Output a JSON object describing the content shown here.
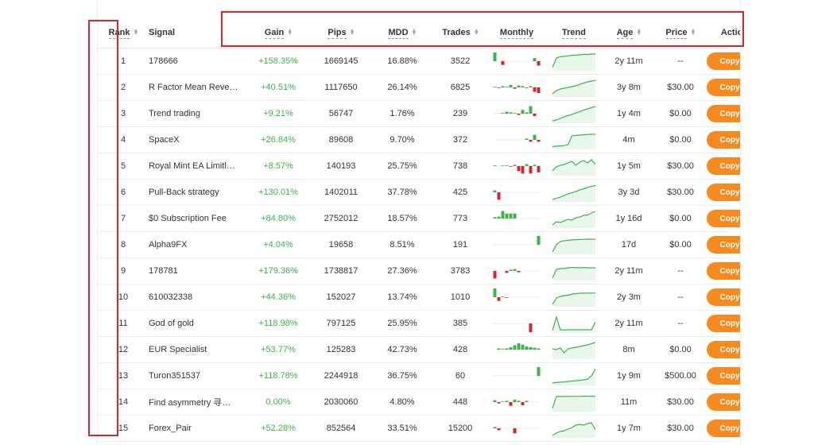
{
  "headers": {
    "rank": "Rank",
    "signal": "Signal",
    "gain": "Gain",
    "pips": "Pips",
    "mdd": "MDD",
    "trades": "Trades",
    "monthly": "Monthly",
    "trend": "Trend",
    "age": "Age",
    "price": "Price",
    "action": "Action"
  },
  "colors": {
    "positive": "#3cb44b",
    "negative": "#d9262a",
    "accent_button": "#f68a1f",
    "highlight_box": "#d9262a"
  },
  "rows": [
    {
      "rank": "1",
      "signal": "178666",
      "gain": "+158.35%",
      "pips": "1669145",
      "mdd": "16.88%",
      "trades": "3522",
      "age": "2y 11m",
      "price": "--",
      "action": "Copy",
      "monthly": [
        14,
        0,
        -6,
        0,
        0,
        0,
        0,
        0,
        0,
        0,
        5,
        -7
      ],
      "trend": [
        0.1,
        0.7,
        0.78,
        0.8,
        0.84,
        0.87,
        0.88,
        0.9,
        0.93,
        0.92,
        0.95,
        0.95
      ]
    },
    {
      "rank": "2",
      "signal": "R Factor Mean Reve…",
      "gain": "+40.51%",
      "pips": "1117650",
      "mdd": "26.14%",
      "trades": "6825",
      "age": "3y 8m",
      "price": "$30.00",
      "action": "Copy",
      "monthly": [
        1,
        -1,
        2,
        1,
        4,
        -2,
        3,
        2,
        -1,
        2,
        -7,
        -9
      ],
      "trend": [
        0.1,
        0.3,
        0.4,
        0.45,
        0.5,
        0.55,
        0.6,
        0.7,
        0.78,
        0.85,
        0.9,
        0.95
      ]
    },
    {
      "rank": "3",
      "signal": "Trend trading",
      "gain": "+9.21%",
      "pips": "56747",
      "mdd": "1.76%",
      "trades": "239",
      "age": "1y 4m",
      "price": "$0.00",
      "action": "Copy",
      "monthly": [
        0,
        0,
        1,
        3,
        2,
        1,
        -2,
        6,
        2,
        12,
        -4,
        0
      ],
      "trend": [
        0.05,
        0.1,
        0.2,
        0.3,
        0.38,
        0.45,
        0.55,
        0.62,
        0.72,
        0.8,
        0.88,
        0.95
      ]
    },
    {
      "rank": "4",
      "signal": "SpaceX",
      "gain": "+26.84%",
      "pips": "89608",
      "mdd": "9.70%",
      "trades": "372",
      "age": "4m",
      "price": "$0.00",
      "action": "Copy",
      "monthly": [
        0,
        0,
        0,
        0,
        0,
        0,
        0,
        0,
        2,
        -3,
        8,
        -3
      ],
      "trend": [
        0.08,
        0.1,
        0.12,
        0.14,
        0.2,
        0.75,
        0.78,
        0.8,
        0.82,
        0.84,
        0.85,
        0.86
      ]
    },
    {
      "rank": "5",
      "signal": "Royal Mint EA Limitl…",
      "gain": "+8.57%",
      "pips": "140193",
      "mdd": "25.75%",
      "trades": "738",
      "age": "1y 5m",
      "price": "$30.00",
      "action": "Copy",
      "monthly": [
        1,
        0,
        1,
        1,
        -1,
        2,
        -8,
        -12,
        3,
        -12,
        2,
        -10
      ],
      "trend": [
        0.2,
        0.45,
        0.55,
        0.6,
        0.7,
        0.8,
        0.55,
        0.75,
        0.85,
        0.7,
        0.9,
        0.6
      ]
    },
    {
      "rank": "6",
      "signal": "Pull-Back strategy",
      "gain": "+130.01%",
      "pips": "1402011",
      "mdd": "37.78%",
      "trades": "425",
      "age": "3y 3d",
      "price": "$30.00",
      "action": "Copy",
      "monthly": [
        3,
        -12,
        0,
        0,
        0,
        0,
        0,
        0,
        0,
        0,
        0,
        0
      ],
      "trend": [
        0.05,
        0.12,
        0.2,
        0.3,
        0.4,
        0.48,
        0.55,
        0.65,
        0.72,
        0.8,
        0.88,
        0.92
      ]
    },
    {
      "rank": "7",
      "signal": "$0 Subscription Fee",
      "gain": "+84.80%",
      "pips": "2752012",
      "mdd": "18.57%",
      "trades": "773",
      "age": "1y 16d",
      "price": "$0.00",
      "action": "Copy",
      "monthly": [
        2,
        3,
        12,
        8,
        8,
        8,
        0,
        0,
        0,
        0,
        0,
        0
      ],
      "trend": [
        0.1,
        0.3,
        0.25,
        0.35,
        0.45,
        0.4,
        0.55,
        0.6,
        0.7,
        0.72,
        0.85,
        0.95
      ]
    },
    {
      "rank": "8",
      "signal": "Alpha9FX",
      "gain": "+4.04%",
      "pips": "19658",
      "mdd": "8.51%",
      "trades": "191",
      "age": "17d",
      "price": "$0.00",
      "action": "Copy",
      "monthly": [
        0,
        0,
        0,
        0,
        0,
        0,
        0,
        0,
        0,
        0,
        0,
        14
      ],
      "trend": [
        0.05,
        0.5,
        0.7,
        0.75,
        0.78,
        0.8,
        0.82,
        0.83,
        0.84,
        0.85,
        0.85,
        0.85
      ]
    },
    {
      "rank": "9",
      "signal": "178781",
      "gain": "+179.36%",
      "pips": "1738817",
      "mdd": "27.36%",
      "trades": "3783",
      "age": "2y 11m",
      "price": "--",
      "action": "Copy",
      "monthly": [
        -12,
        0,
        0,
        -3,
        2,
        3,
        -2,
        0,
        0,
        0,
        0,
        0
      ],
      "trend": [
        0.05,
        0.6,
        0.65,
        0.65,
        0.7,
        0.72,
        0.72,
        0.7,
        0.72,
        0.7,
        0.7,
        0.7
      ]
    },
    {
      "rank": "10",
      "signal": "610032338",
      "gain": "+44.36%",
      "pips": "152027",
      "mdd": "13.74%",
      "trades": "1010",
      "age": "2y 3m",
      "price": "--",
      "action": "Copy",
      "monthly": [
        14,
        -6,
        1,
        -1,
        0,
        0,
        0,
        0,
        0,
        0,
        0,
        0
      ],
      "trend": [
        0.05,
        0.45,
        0.55,
        0.6,
        0.62,
        0.7,
        0.72,
        0.75,
        0.75,
        0.76,
        0.76,
        0.76
      ]
    },
    {
      "rank": "11",
      "signal": "God of gold",
      "gain": "+118.98%",
      "pips": "797125",
      "mdd": "25.95%",
      "trades": "385",
      "age": "2y 11m",
      "price": "--",
      "action": "Copy",
      "monthly": [
        0,
        0,
        0,
        0,
        0,
        0,
        0,
        0,
        0,
        -14,
        0,
        0
      ],
      "trend": [
        0.05,
        0.9,
        0.1,
        0.08,
        0.1,
        0.1,
        0.1,
        0.1,
        0.1,
        0.1,
        0.1,
        0.6
      ]
    },
    {
      "rank": "12",
      "signal": "EUR Specialist",
      "gain": "+53.77%",
      "pips": "125283",
      "mdd": "42.73%",
      "trades": "428",
      "age": "8m",
      "price": "$0.00",
      "action": "Copy",
      "monthly": [
        0,
        2,
        1,
        2,
        4,
        7,
        10,
        8,
        5,
        4,
        3,
        2
      ],
      "trend": [
        0.55,
        0.5,
        0.6,
        0.3,
        0.55,
        0.6,
        0.65,
        0.7,
        0.75,
        0.8,
        0.88,
        0.95
      ]
    },
    {
      "rank": "13",
      "signal": "Turon351537",
      "gain": "+118.78%",
      "pips": "2244918",
      "mdd": "36.75%",
      "trades": "60",
      "age": "1y 9m",
      "price": "$500.00",
      "action": "Copy",
      "monthly": [
        0,
        0,
        0,
        0,
        0,
        0,
        0,
        0,
        0,
        0,
        0,
        14
      ],
      "trend": [
        0.05,
        0.08,
        0.1,
        0.12,
        0.15,
        0.17,
        0.2,
        0.22,
        0.25,
        0.3,
        0.5,
        0.95
      ]
    },
    {
      "rank": "14",
      "signal": "Find asymmetry 寻…",
      "gain": "0.00%",
      "pips": "2030060",
      "mdd": "4.80%",
      "trades": "448",
      "age": "11m",
      "price": "$30.00",
      "action": "Copy",
      "monthly": [
        3,
        -2,
        1,
        2,
        -6,
        4,
        2,
        -5,
        2,
        0,
        0,
        0
      ],
      "trend": [
        0.1,
        0.85,
        0.85,
        0.85,
        0.86,
        0.86,
        0.86,
        0.86,
        0.87,
        0.87,
        0.87,
        0.87
      ]
    },
    {
      "rank": "15",
      "signal": "Forex_Pair",
      "gain": "+52.28%",
      "pips": "852564",
      "mdd": "33.51%",
      "trades": "15200",
      "age": "1y 7m",
      "price": "$30.00",
      "action": "Copy",
      "monthly": [
        2,
        -3,
        0,
        0,
        0,
        -8,
        0,
        0,
        0,
        0,
        0,
        0
      ],
      "trend": [
        0.05,
        0.2,
        0.3,
        0.35,
        0.45,
        0.55,
        0.7,
        0.75,
        0.7,
        0.8,
        0.85,
        0.4
      ]
    }
  ]
}
